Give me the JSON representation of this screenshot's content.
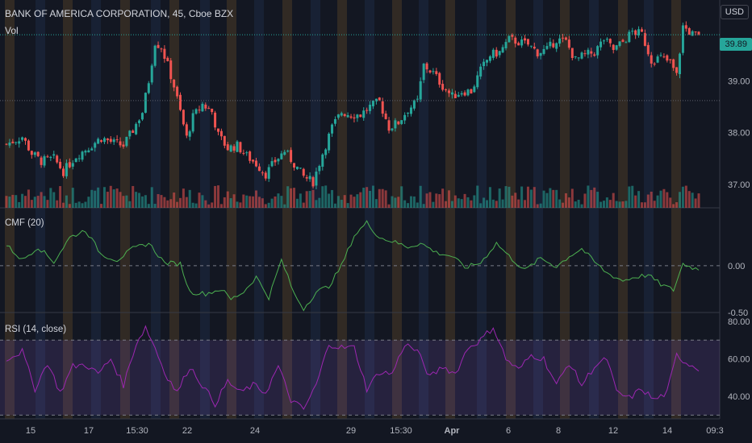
{
  "header": {
    "title": "BANK OF AMERICA CORPORATION, 45, Cboe BZX",
    "volume_label": "Vol",
    "currency": "USD",
    "last_price": "39.89"
  },
  "panes": {
    "cmf_label": "CMF (20)",
    "rsi_label": "RSI (14, close)"
  },
  "colors": {
    "background": "#131722",
    "up": "#26a69a",
    "down": "#ef5350",
    "cmf_line": "#4caf50",
    "rsi_line": "#9c27b0",
    "rsi_band": "#7e57c2",
    "grid": "#2a2e39",
    "session_orange": "#4a3a26",
    "session_blue": "#1e2a44"
  },
  "chart_data": [
    {
      "type": "candlestick",
      "pane": "price",
      "ylim": [
        36.55,
        40.25
      ],
      "yticks": [
        "37.00",
        "38.00",
        "39.00",
        "39.89"
      ],
      "ytick_values": [
        37.0,
        38.0,
        39.0
      ],
      "dotted_reference_lines": [
        39.89,
        38.62
      ],
      "xticks": [
        "15",
        "17",
        "15:30",
        "22",
        "24",
        "29",
        "15:30",
        "Apr",
        "6",
        "8",
        "12",
        "14",
        "09:3"
      ],
      "close_anchors": [
        [
          0,
          37.78
        ],
        [
          5,
          37.92
        ],
        [
          8,
          37.6
        ],
        [
          11,
          37.45
        ],
        [
          15,
          37.5
        ],
        [
          18,
          37.25
        ],
        [
          22,
          37.55
        ],
        [
          26,
          37.72
        ],
        [
          30,
          37.9
        ],
        [
          34,
          37.8
        ],
        [
          37,
          37.75
        ],
        [
          40,
          38.05
        ],
        [
          43,
          38.4
        ],
        [
          45,
          39.0
        ],
        [
          47,
          39.75
        ],
        [
          49,
          39.65
        ],
        [
          51,
          39.3
        ],
        [
          53,
          38.9
        ],
        [
          55,
          38.4
        ],
        [
          57,
          37.9
        ],
        [
          59,
          38.3
        ],
        [
          62,
          38.55
        ],
        [
          65,
          38.4
        ],
        [
          67,
          37.95
        ],
        [
          70,
          37.7
        ],
        [
          73,
          37.75
        ],
        [
          76,
          37.55
        ],
        [
          79,
          37.4
        ],
        [
          82,
          37.2
        ],
        [
          85,
          37.45
        ],
        [
          88,
          37.65
        ],
        [
          91,
          37.4
        ],
        [
          94,
          37.15
        ],
        [
          97,
          37.05
        ],
        [
          100,
          37.6
        ],
        [
          103,
          38.1
        ],
        [
          106,
          38.4
        ],
        [
          109,
          38.35
        ],
        [
          112,
          38.35
        ],
        [
          115,
          38.5
        ],
        [
          118,
          38.6
        ],
        [
          121,
          38.1
        ],
        [
          124,
          38.2
        ],
        [
          127,
          38.45
        ],
        [
          130,
          38.6
        ],
        [
          132,
          39.3
        ],
        [
          135,
          39.15
        ],
        [
          138,
          38.9
        ],
        [
          141,
          38.7
        ],
        [
          144,
          38.8
        ],
        [
          147,
          38.8
        ],
        [
          150,
          39.2
        ],
        [
          153,
          39.5
        ],
        [
          156,
          39.55
        ],
        [
          159,
          39.8
        ],
        [
          162,
          39.75
        ],
        [
          165,
          39.7
        ],
        [
          168,
          39.55
        ],
        [
          171,
          39.6
        ],
        [
          174,
          39.8
        ],
        [
          177,
          39.75
        ],
        [
          180,
          39.4
        ],
        [
          183,
          39.5
        ],
        [
          186,
          39.55
        ],
        [
          189,
          39.8
        ],
        [
          192,
          39.6
        ],
        [
          195,
          39.75
        ],
        [
          198,
          39.95
        ],
        [
          201,
          39.9
        ],
        [
          204,
          39.4
        ],
        [
          207,
          39.45
        ],
        [
          210,
          39.35
        ],
        [
          212,
          39.1
        ],
        [
          214,
          40.05
        ],
        [
          217,
          39.9
        ],
        [
          219,
          39.85
        ]
      ],
      "candle_count": 220,
      "volume_relative_range": [
        0.15,
        1.0
      ]
    },
    {
      "type": "line",
      "pane": "cmf",
      "name": "",
      "ylim": [
        -0.5,
        0.6
      ],
      "yticks": [
        "0.00",
        "-0.50"
      ],
      "ytick_values": [
        0.0,
        -0.5
      ],
      "anchors": [
        [
          0,
          0.22
        ],
        [
          5,
          0.06
        ],
        [
          10,
          0.2
        ],
        [
          15,
          0.04
        ],
        [
          20,
          0.3
        ],
        [
          25,
          0.38
        ],
        [
          30,
          0.12
        ],
        [
          35,
          0.06
        ],
        [
          40,
          0.18
        ],
        [
          45,
          0.24
        ],
        [
          50,
          0.03
        ],
        [
          55,
          0.02
        ],
        [
          58,
          -0.28
        ],
        [
          63,
          -0.3
        ],
        [
          68,
          -0.25
        ],
        [
          71,
          -0.36
        ],
        [
          75,
          -0.28
        ],
        [
          79,
          -0.12
        ],
        [
          83,
          -0.34
        ],
        [
          87,
          0.06
        ],
        [
          91,
          -0.3
        ],
        [
          94,
          -0.46
        ],
        [
          98,
          -0.28
        ],
        [
          102,
          -0.22
        ],
        [
          106,
          0.0
        ],
        [
          110,
          0.32
        ],
        [
          114,
          0.46
        ],
        [
          118,
          0.3
        ],
        [
          122,
          0.26
        ],
        [
          127,
          0.2
        ],
        [
          131,
          0.24
        ],
        [
          136,
          0.14
        ],
        [
          141,
          0.1
        ],
        [
          145,
          -0.02
        ],
        [
          150,
          0.03
        ],
        [
          155,
          0.24
        ],
        [
          159,
          0.1
        ],
        [
          164,
          -0.05
        ],
        [
          169,
          0.08
        ],
        [
          174,
          -0.01
        ],
        [
          178,
          0.1
        ],
        [
          182,
          0.18
        ],
        [
          186,
          0.04
        ],
        [
          190,
          -0.08
        ],
        [
          195,
          -0.16
        ],
        [
          199,
          -0.12
        ],
        [
          203,
          -0.1
        ],
        [
          207,
          -0.2
        ],
        [
          211,
          -0.26
        ],
        [
          214,
          0.02
        ],
        [
          217,
          -0.02
        ],
        [
          219,
          -0.04
        ]
      ]
    },
    {
      "type": "line",
      "pane": "rsi",
      "name": "",
      "ylim": [
        28,
        83
      ],
      "yticks": [
        "80.00",
        "60.00",
        "40.00"
      ],
      "ytick_values": [
        80,
        60,
        40
      ],
      "band": [
        30,
        70
      ],
      "anchors": [
        [
          0,
          60
        ],
        [
          5,
          64
        ],
        [
          9,
          44
        ],
        [
          13,
          58
        ],
        [
          17,
          42
        ],
        [
          21,
          56
        ],
        [
          25,
          57
        ],
        [
          29,
          52
        ],
        [
          33,
          60
        ],
        [
          37,
          46
        ],
        [
          41,
          68
        ],
        [
          44,
          77
        ],
        [
          47,
          66
        ],
        [
          50,
          53
        ],
        [
          54,
          42
        ],
        [
          58,
          56
        ],
        [
          62,
          46
        ],
        [
          66,
          36
        ],
        [
          70,
          48
        ],
        [
          74,
          42
        ],
        [
          78,
          46
        ],
        [
          82,
          42
        ],
        [
          86,
          56
        ],
        [
          90,
          38
        ],
        [
          94,
          33
        ],
        [
          98,
          46
        ],
        [
          102,
          68
        ],
        [
          106,
          66
        ],
        [
          110,
          66
        ],
        [
          114,
          44
        ],
        [
          118,
          53
        ],
        [
          122,
          52
        ],
        [
          126,
          68
        ],
        [
          130,
          64
        ],
        [
          134,
          50
        ],
        [
          138,
          56
        ],
        [
          142,
          52
        ],
        [
          146,
          66
        ],
        [
          150,
          70
        ],
        [
          154,
          77
        ],
        [
          158,
          60
        ],
        [
          162,
          54
        ],
        [
          166,
          62
        ],
        [
          170,
          60
        ],
        [
          174,
          46
        ],
        [
          178,
          58
        ],
        [
          182,
          46
        ],
        [
          186,
          56
        ],
        [
          190,
          60
        ],
        [
          193,
          42
        ],
        [
          197,
          39
        ],
        [
          201,
          44
        ],
        [
          205,
          38
        ],
        [
          209,
          42
        ],
        [
          212,
          62
        ],
        [
          215,
          58
        ],
        [
          219,
          55
        ]
      ]
    }
  ]
}
